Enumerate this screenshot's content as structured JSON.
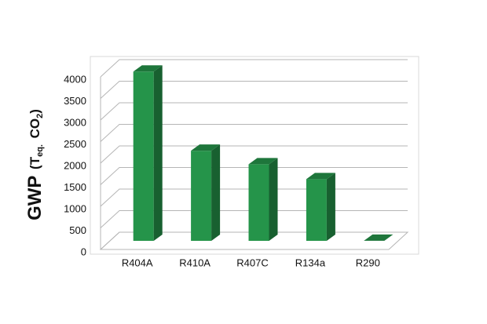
{
  "chart_data": {
    "type": "bar3d",
    "y_label": [
      "GWP",
      "(T",
      "eq.",
      "CO",
      "2",
      ")"
    ],
    "categories": [
      "R404A",
      "R410A",
      "R407C",
      "R134a",
      "R290"
    ],
    "values": [
      3922,
      2088,
      1774,
      1430,
      3
    ],
    "color": "#25944a",
    "ylim": [
      0,
      4000
    ],
    "yticks": [
      0,
      500,
      1000,
      1500,
      2000,
      2500,
      3000,
      3500,
      4000
    ],
    "grid": true
  }
}
